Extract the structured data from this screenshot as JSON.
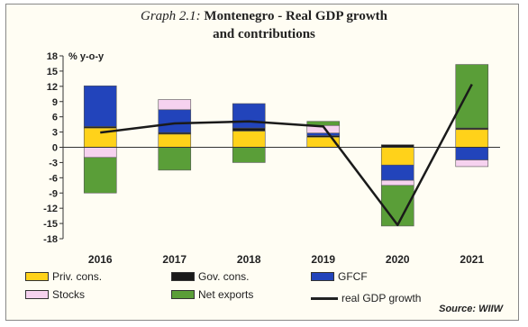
{
  "chart_data": {
    "type": "bar",
    "title_prefix": "Graph 2.1:",
    "title_line1": "Montenegro - Real GDP growth",
    "title_line2": "and contributions",
    "ylabel": "% y-o-y",
    "ylim": [
      -18,
      18
    ],
    "yticks": [
      18,
      15,
      12,
      9,
      6,
      3,
      0,
      -3,
      -6,
      -9,
      -12,
      -15,
      -18
    ],
    "categories": [
      "2016",
      "2017",
      "2018",
      "2019",
      "2020",
      "2021"
    ],
    "stacked": true,
    "series": [
      {
        "name": "Priv. cons.",
        "color": "#ffd21a",
        "values": [
          3.8,
          2.6,
          3.2,
          2.0,
          -3.5,
          3.5
        ]
      },
      {
        "name": "Gov. cons.",
        "color": "#1a1a1a",
        "values": [
          0.3,
          0.3,
          0.6,
          0.3,
          0.5,
          0.3
        ]
      },
      {
        "name": "GFCF",
        "color": "#2244bb",
        "values": [
          8.0,
          4.5,
          4.8,
          0.5,
          -3.0,
          -2.5
        ]
      },
      {
        "name": "Stocks",
        "color": "#f6d2ef",
        "values": [
          -2.0,
          2.0,
          0.0,
          1.5,
          -1.0,
          -1.3
        ]
      },
      {
        "name": "Net exports",
        "color": "#5a9e38",
        "values": [
          -7.0,
          -4.5,
          -3.0,
          0.8,
          -8.0,
          12.5
        ]
      }
    ],
    "line": {
      "name": "real GDP growth",
      "color": "#1a1a1a",
      "values": [
        2.9,
        4.7,
        5.1,
        4.1,
        -15.3,
        12.4
      ]
    },
    "legend_position": "bottom",
    "grid": false,
    "source": "Source: WIIW"
  }
}
